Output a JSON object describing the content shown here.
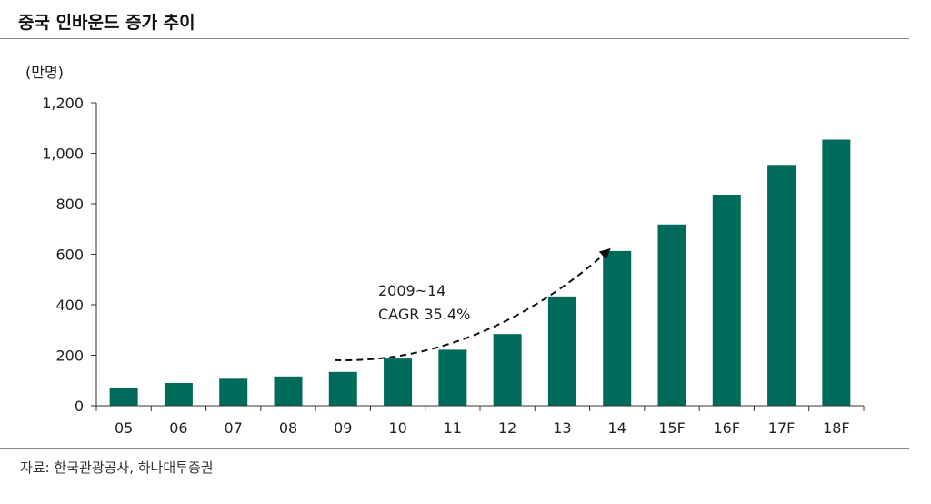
{
  "header": {
    "title": "중국 인바운드 증가 추이"
  },
  "unit_label": "(만명)",
  "source": "자료: 한국관광공사, 하나대투증권",
  "chart_data": {
    "type": "bar",
    "title": "중국 인바운드 증가 추이",
    "xlabel": "",
    "ylabel": "(만명)",
    "categories": [
      "05",
      "06",
      "07",
      "08",
      "09",
      "10",
      "11",
      "12",
      "13",
      "14",
      "15F",
      "16F",
      "17F",
      "18F"
    ],
    "values": [
      70,
      90,
      107,
      116,
      134,
      187,
      222,
      284,
      433,
      613,
      718,
      836,
      954,
      1054
    ],
    "ylim": [
      0,
      1200
    ],
    "yticks": [
      0,
      200,
      400,
      600,
      800,
      1000,
      1200
    ],
    "ytick_labels": [
      "0",
      "200",
      "400",
      "600",
      "800",
      "1,000",
      "1,200"
    ],
    "bar_color": "#006b5b",
    "grid": false,
    "annotation": {
      "line1": "2009~14",
      "line2": "CAGR 35.4%",
      "arrow_from": "09",
      "arrow_to": "14"
    }
  }
}
